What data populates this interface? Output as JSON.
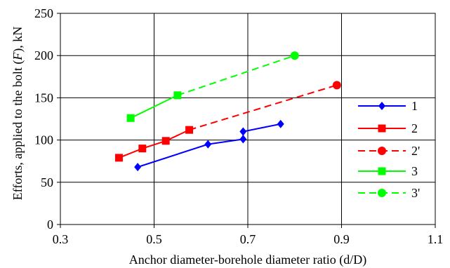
{
  "chart_data": {
    "type": "line",
    "xlabel": "Anchor diameter-borehole diameter ratio (d/D)",
    "ylabel_parts": [
      "Efforts, applied to the bolt  (",
      "F",
      "), kN"
    ],
    "xlim": [
      0.3,
      1.1
    ],
    "ylim": [
      0,
      250
    ],
    "x_ticks": [
      "0.3",
      "0.5",
      "0.7",
      "0.9",
      "1.1"
    ],
    "y_ticks": [
      "0",
      "50",
      "100",
      "150",
      "200",
      "250"
    ],
    "grid": true,
    "legend_position": "right",
    "series": [
      {
        "name": "1",
        "color": "#0000ff",
        "dash": "solid",
        "marker": "diamond",
        "points": [
          [
            0.465,
            68
          ],
          [
            0.615,
            95
          ],
          [
            0.69,
            101
          ],
          [
            0.69,
            110
          ],
          [
            0.77,
            119
          ]
        ]
      },
      {
        "name": "2",
        "color": "#ff0000",
        "dash": "solid",
        "marker": "square",
        "points": [
          [
            0.425,
            79
          ],
          [
            0.475,
            90
          ],
          [
            0.525,
            99
          ],
          [
            0.575,
            112
          ]
        ]
      },
      {
        "name": "2'",
        "color": "#ff0000",
        "dash": "dashed",
        "marker": "circle",
        "points": [
          [
            0.575,
            112
          ],
          [
            0.89,
            165
          ]
        ]
      },
      {
        "name": "3",
        "color": "#00ff00",
        "dash": "solid",
        "marker": "square",
        "points": [
          [
            0.45,
            126
          ],
          [
            0.55,
            153
          ]
        ]
      },
      {
        "name": "3'",
        "color": "#00ff00",
        "dash": "dashed",
        "marker": "circle",
        "points": [
          [
            0.55,
            153
          ],
          [
            0.8,
            200
          ]
        ]
      }
    ]
  }
}
